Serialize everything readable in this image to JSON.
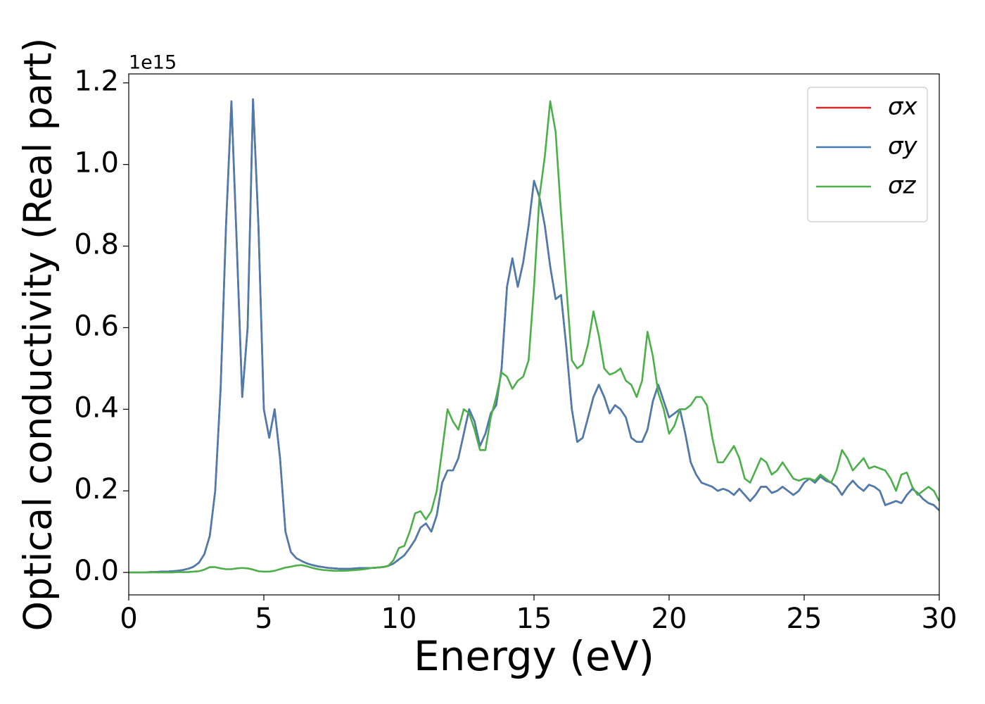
{
  "chart_data": {
    "type": "line",
    "x_label": "Energy (eV)",
    "y_label": "Optical conductivity (Real part)",
    "y_offset_label": "1e15",
    "xlim": [
      0,
      30
    ],
    "ylim": [
      -0.055,
      1.222
    ],
    "xticks": [
      0,
      5,
      10,
      15,
      20,
      25,
      30
    ],
    "yticks": [
      {
        "value": 0,
        "label": "0.0"
      },
      {
        "value": 0.2,
        "label": "0.2"
      },
      {
        "value": 0.4,
        "label": "0.4"
      },
      {
        "value": 0.6,
        "label": "0.6"
      },
      {
        "value": 0.8,
        "label": "0.8"
      },
      {
        "value": 1.0,
        "label": "1.0"
      },
      {
        "value": 1.2,
        "label": "1.2"
      }
    ],
    "grid": false,
    "legend": "upper right",
    "x": [
      0,
      0.2,
      0.4,
      0.6,
      0.8,
      1,
      1.2,
      1.4,
      1.6,
      1.8,
      2,
      2.2,
      2.4,
      2.6,
      2.8,
      3,
      3.2,
      3.4,
      3.6,
      3.8,
      4,
      4.2,
      4.4,
      4.6,
      4.8,
      5,
      5.2,
      5.4,
      5.6,
      5.8,
      6,
      6.2,
      6.4,
      6.6,
      6.8,
      7,
      7.2,
      7.4,
      7.6,
      7.8,
      8,
      8.2,
      8.4,
      8.6,
      8.8,
      9,
      9.2,
      9.4,
      9.6,
      9.8,
      10,
      10.2,
      10.4,
      10.6,
      10.8,
      11,
      11.2,
      11.4,
      11.6,
      11.8,
      12,
      12.2,
      12.4,
      12.6,
      12.8,
      13,
      13.2,
      13.4,
      13.6,
      13.8,
      14,
      14.2,
      14.4,
      14.6,
      14.8,
      15,
      15.2,
      15.4,
      15.6,
      15.8,
      16,
      16.2,
      16.4,
      16.6,
      16.8,
      17,
      17.2,
      17.4,
      17.6,
      17.8,
      18,
      18.2,
      18.4,
      18.6,
      18.8,
      19,
      19.2,
      19.4,
      19.6,
      19.8,
      20,
      20.2,
      20.4,
      20.6,
      20.8,
      21,
      21.2,
      21.4,
      21.6,
      21.8,
      22,
      22.2,
      22.4,
      22.6,
      22.8,
      23,
      23.2,
      23.4,
      23.6,
      23.8,
      24,
      24.2,
      24.4,
      24.6,
      24.8,
      25,
      25.2,
      25.4,
      25.6,
      25.8,
      26,
      26.2,
      26.4,
      26.6,
      26.8,
      27,
      27.2,
      27.4,
      27.6,
      27.8,
      28,
      28.2,
      28.4,
      28.6,
      28.8,
      29,
      29.2,
      29.4,
      29.6,
      29.8,
      30
    ],
    "series": [
      {
        "name": "σx",
        "color": "#d62728",
        "values": [
          0,
          0,
          0,
          0,
          0.001,
          0.001,
          0.002,
          0.002,
          0.003,
          0.004,
          0.006,
          0.009,
          0.014,
          0.024,
          0.045,
          0.09,
          0.2,
          0.45,
          0.85,
          1.155,
          0.8,
          0.43,
          0.6,
          1.16,
          0.85,
          0.4,
          0.33,
          0.4,
          0.28,
          0.1,
          0.05,
          0.035,
          0.028,
          0.022,
          0.018,
          0.015,
          0.013,
          0.011,
          0.01,
          0.009,
          0.009,
          0.009,
          0.01,
          0.011,
          0.011,
          0.011,
          0.012,
          0.013,
          0.016,
          0.022,
          0.032,
          0.042,
          0.06,
          0.08,
          0.11,
          0.12,
          0.1,
          0.14,
          0.22,
          0.25,
          0.25,
          0.28,
          0.34,
          0.4,
          0.37,
          0.31,
          0.34,
          0.39,
          0.41,
          0.5,
          0.7,
          0.77,
          0.7,
          0.76,
          0.85,
          0.96,
          0.92,
          0.85,
          0.75,
          0.67,
          0.68,
          0.55,
          0.4,
          0.32,
          0.33,
          0.38,
          0.43,
          0.46,
          0.43,
          0.39,
          0.41,
          0.4,
          0.38,
          0.33,
          0.32,
          0.32,
          0.35,
          0.42,
          0.46,
          0.42,
          0.38,
          0.39,
          0.4,
          0.34,
          0.27,
          0.24,
          0.22,
          0.215,
          0.21,
          0.2,
          0.205,
          0.2,
          0.19,
          0.205,
          0.19,
          0.175,
          0.19,
          0.21,
          0.21,
          0.195,
          0.2,
          0.21,
          0.2,
          0.19,
          0.2,
          0.22,
          0.23,
          0.22,
          0.235,
          0.225,
          0.22,
          0.21,
          0.19,
          0.21,
          0.225,
          0.21,
          0.2,
          0.215,
          0.21,
          0.2,
          0.165,
          0.17,
          0.175,
          0.17,
          0.19,
          0.205,
          0.195,
          0.18,
          0.17,
          0.165,
          0.152
        ]
      },
      {
        "name": "σy",
        "color": "#4a7cb0",
        "values": [
          0,
          0,
          0,
          0,
          0.001,
          0.001,
          0.002,
          0.002,
          0.003,
          0.004,
          0.006,
          0.009,
          0.014,
          0.024,
          0.045,
          0.09,
          0.2,
          0.45,
          0.85,
          1.155,
          0.8,
          0.43,
          0.6,
          1.16,
          0.85,
          0.4,
          0.33,
          0.4,
          0.28,
          0.1,
          0.05,
          0.035,
          0.028,
          0.022,
          0.018,
          0.015,
          0.013,
          0.011,
          0.01,
          0.009,
          0.009,
          0.009,
          0.01,
          0.011,
          0.011,
          0.011,
          0.012,
          0.013,
          0.016,
          0.022,
          0.032,
          0.042,
          0.06,
          0.08,
          0.11,
          0.12,
          0.1,
          0.14,
          0.22,
          0.25,
          0.25,
          0.28,
          0.34,
          0.4,
          0.37,
          0.31,
          0.34,
          0.39,
          0.41,
          0.5,
          0.7,
          0.77,
          0.7,
          0.76,
          0.85,
          0.96,
          0.92,
          0.85,
          0.75,
          0.67,
          0.68,
          0.55,
          0.4,
          0.32,
          0.33,
          0.38,
          0.43,
          0.46,
          0.43,
          0.39,
          0.41,
          0.4,
          0.38,
          0.33,
          0.32,
          0.32,
          0.35,
          0.42,
          0.46,
          0.42,
          0.38,
          0.39,
          0.4,
          0.34,
          0.27,
          0.24,
          0.22,
          0.215,
          0.21,
          0.2,
          0.205,
          0.2,
          0.19,
          0.205,
          0.19,
          0.175,
          0.19,
          0.21,
          0.21,
          0.195,
          0.2,
          0.21,
          0.2,
          0.19,
          0.2,
          0.22,
          0.23,
          0.22,
          0.235,
          0.225,
          0.22,
          0.21,
          0.19,
          0.21,
          0.225,
          0.21,
          0.2,
          0.215,
          0.21,
          0.2,
          0.165,
          0.17,
          0.175,
          0.17,
          0.19,
          0.205,
          0.195,
          0.18,
          0.17,
          0.165,
          0.152
        ]
      },
      {
        "name": "σz",
        "color": "#4daf4a",
        "values": [
          0,
          0,
          0,
          0,
          0,
          0,
          0,
          0,
          0,
          0.001,
          0.001,
          0.001,
          0.002,
          0.003,
          0.007,
          0.013,
          0.013,
          0.01,
          0.008,
          0.008,
          0.01,
          0.011,
          0.01,
          0.007,
          0.003,
          0.002,
          0.002,
          0.004,
          0.008,
          0.012,
          0.014,
          0.017,
          0.018,
          0.015,
          0.011,
          0.008,
          0.006,
          0.005,
          0.004,
          0.004,
          0.004,
          0.005,
          0.006,
          0.007,
          0.009,
          0.011,
          0.012,
          0.013,
          0.016,
          0.03,
          0.06,
          0.065,
          0.1,
          0.145,
          0.15,
          0.13,
          0.15,
          0.2,
          0.3,
          0.4,
          0.37,
          0.35,
          0.4,
          0.39,
          0.35,
          0.3,
          0.3,
          0.38,
          0.43,
          0.49,
          0.48,
          0.45,
          0.47,
          0.48,
          0.52,
          0.7,
          0.92,
          1.02,
          1.155,
          1.08,
          0.88,
          0.7,
          0.52,
          0.5,
          0.51,
          0.56,
          0.64,
          0.58,
          0.5,
          0.485,
          0.49,
          0.5,
          0.47,
          0.46,
          0.43,
          0.47,
          0.59,
          0.53,
          0.44,
          0.4,
          0.34,
          0.36,
          0.4,
          0.4,
          0.41,
          0.43,
          0.43,
          0.41,
          0.33,
          0.27,
          0.27,
          0.29,
          0.31,
          0.28,
          0.23,
          0.22,
          0.25,
          0.28,
          0.27,
          0.24,
          0.25,
          0.27,
          0.25,
          0.23,
          0.225,
          0.23,
          0.23,
          0.225,
          0.24,
          0.23,
          0.22,
          0.25,
          0.3,
          0.28,
          0.25,
          0.265,
          0.28,
          0.255,
          0.26,
          0.255,
          0.25,
          0.23,
          0.2,
          0.24,
          0.245,
          0.21,
          0.19,
          0.2,
          0.21,
          0.2,
          0.175
        ]
      }
    ]
  }
}
